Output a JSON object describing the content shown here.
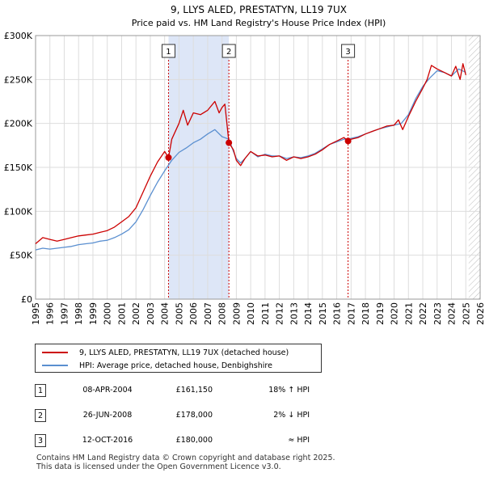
{
  "chart_data": {
    "type": "line",
    "title": "9, LLYS ALED, PRESTATYN, LL19 7UX",
    "subtitle": "Price paid vs. HM Land Registry's House Price Index (HPI)",
    "xlim": [
      1995,
      2026
    ],
    "ylim": [
      0,
      300000
    ],
    "x_ticks": [
      "1995",
      "1996",
      "1997",
      "1998",
      "1999",
      "2000",
      "2001",
      "2002",
      "2003",
      "2004",
      "2005",
      "2006",
      "2007",
      "2008",
      "2009",
      "2010",
      "2011",
      "2012",
      "2013",
      "2014",
      "2015",
      "2016",
      "2017",
      "2018",
      "2019",
      "2020",
      "2021",
      "2022",
      "2023",
      "2024",
      "2025",
      "2026"
    ],
    "y_ticks": [
      {
        "value": 0,
        "label": "£0"
      },
      {
        "value": 50000,
        "label": "£50K"
      },
      {
        "value": 100000,
        "label": "£100K"
      },
      {
        "value": 150000,
        "label": "£150K"
      },
      {
        "value": 200000,
        "label": "£200K"
      },
      {
        "value": 250000,
        "label": "£250K"
      },
      {
        "value": 300000,
        "label": "£300K"
      }
    ],
    "shaded_regions": [
      [
        2004.27,
        2008.48
      ]
    ],
    "future_hatch_from": 2025.2,
    "series": [
      {
        "name": "9, LLYS ALED, PRESTATYN, LL19 7UX (detached house)",
        "color": "#cc0000",
        "x": [
          1995.0,
          1995.5,
          1996.0,
          1996.5,
          1997.0,
          1997.5,
          1998.0,
          1998.5,
          1999.0,
          1999.5,
          2000.0,
          2000.5,
          2001.0,
          2001.5,
          2002.0,
          2002.5,
          2003.0,
          2003.5,
          2004.0,
          2004.27,
          2004.5,
          2005.0,
          2005.3,
          2005.6,
          2006.0,
          2006.5,
          2007.0,
          2007.5,
          2007.8,
          2008.0,
          2008.2,
          2008.48,
          2008.8,
          2009.0,
          2009.3,
          2009.6,
          2010.0,
          2010.5,
          2011.0,
          2011.5,
          2012.0,
          2012.5,
          2013.0,
          2013.5,
          2014.0,
          2014.5,
          2015.0,
          2015.5,
          2016.0,
          2016.5,
          2016.79,
          2017.0,
          2017.5,
          2018.0,
          2018.5,
          2019.0,
          2019.5,
          2020.0,
          2020.3,
          2020.6,
          2021.0,
          2021.5,
          2022.0,
          2022.3,
          2022.6,
          2023.0,
          2023.5,
          2024.0,
          2024.3,
          2024.6,
          2024.8,
          2025.0
        ],
        "y": [
          63000,
          70000,
          68000,
          66000,
          68000,
          70000,
          72000,
          73000,
          74000,
          76000,
          78000,
          82000,
          88000,
          94000,
          104000,
          122000,
          140000,
          156000,
          168000,
          161150,
          182000,
          200000,
          215000,
          198000,
          212000,
          210000,
          215000,
          225000,
          212000,
          218000,
          222000,
          178000,
          170000,
          158000,
          152000,
          160000,
          168000,
          163000,
          164000,
          162000,
          163000,
          158000,
          162000,
          160000,
          162000,
          165000,
          170000,
          176000,
          180000,
          184000,
          180000,
          182000,
          184000,
          188000,
          191000,
          194000,
          197000,
          198000,
          204000,
          193000,
          208000,
          225000,
          240000,
          250000,
          266000,
          262000,
          258000,
          254000,
          265000,
          250000,
          268000,
          255000
        ]
      },
      {
        "name": "HPI: Average price, detached house, Denbighshire",
        "color": "#5a8fd0",
        "x": [
          1995.0,
          1995.5,
          1996.0,
          1996.5,
          1997.0,
          1997.5,
          1998.0,
          1998.5,
          1999.0,
          1999.5,
          2000.0,
          2000.5,
          2001.0,
          2001.5,
          2002.0,
          2002.5,
          2003.0,
          2003.5,
          2004.0,
          2004.5,
          2005.0,
          2005.5,
          2006.0,
          2006.5,
          2007.0,
          2007.5,
          2008.0,
          2008.48,
          2008.8,
          2009.0,
          2009.3,
          2009.6,
          2010.0,
          2010.5,
          2011.0,
          2011.5,
          2012.0,
          2012.5,
          2013.0,
          2013.5,
          2014.0,
          2014.5,
          2015.0,
          2015.5,
          2016.0,
          2016.5,
          2017.0,
          2017.5,
          2018.0,
          2018.5,
          2019.0,
          2019.5,
          2020.0,
          2020.5,
          2021.0,
          2021.5,
          2022.0,
          2022.5,
          2023.0,
          2023.5,
          2024.0,
          2024.5,
          2025.0
        ],
        "y": [
          56000,
          58000,
          57000,
          58000,
          59000,
          60000,
          62000,
          63000,
          64000,
          66000,
          67000,
          70000,
          74000,
          79000,
          88000,
          102000,
          118000,
          133000,
          146000,
          158000,
          167000,
          172000,
          178000,
          182000,
          188000,
          193000,
          185000,
          182000,
          168000,
          160000,
          155000,
          160000,
          168000,
          162000,
          165000,
          163000,
          163000,
          160000,
          162000,
          161000,
          163000,
          166000,
          171000,
          176000,
          179000,
          182000,
          183000,
          185000,
          188000,
          191000,
          194000,
          196000,
          198000,
          200000,
          210000,
          228000,
          242000,
          252000,
          260000,
          258000,
          254000,
          262000,
          258000
        ]
      }
    ],
    "sales": [
      {
        "label": "1",
        "x": 2004.27,
        "y": 161150
      },
      {
        "label": "2",
        "x": 2008.48,
        "y": 178000
      },
      {
        "label": "3",
        "x": 2016.79,
        "y": 180000
      }
    ]
  },
  "legend": {
    "property_label": "9, LLYS ALED, PRESTATYN, LL19 7UX (detached house)",
    "hpi_label": "HPI: Average price, detached house, Denbighshire",
    "property_color": "#cc0000",
    "hpi_color": "#5a8fd0"
  },
  "sales_table": [
    {
      "num": "1",
      "date": "08-APR-2004",
      "price": "£161,150",
      "hpi": "18% ↑ HPI"
    },
    {
      "num": "2",
      "date": "26-JUN-2008",
      "price": "£178,000",
      "hpi": "2% ↓ HPI"
    },
    {
      "num": "3",
      "date": "12-OCT-2016",
      "price": "£180,000",
      "hpi": "≈ HPI"
    }
  ],
  "footer": {
    "line1": "Contains HM Land Registry data © Crown copyright and database right 2025.",
    "line2": "This data is licensed under the Open Government Licence v3.0."
  }
}
